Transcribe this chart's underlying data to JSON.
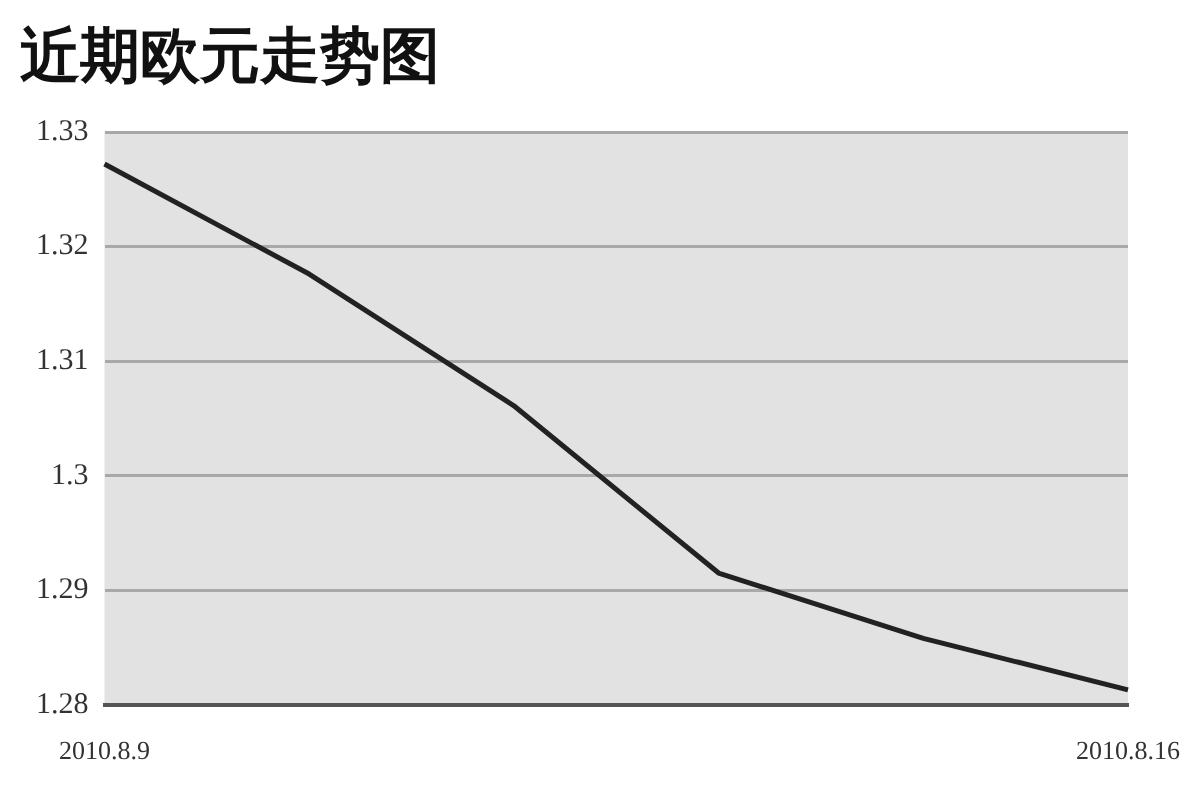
{
  "chart_data": {
    "type": "line",
    "title": "近期欧元走势图",
    "categories": [
      "2010.8.9",
      null,
      null,
      null,
      null,
      "2010.8.16"
    ],
    "series": [
      {
        "color": "#222222",
        "values": [
          1.3272,
          1.3176,
          1.3061,
          1.2915,
          1.2858,
          1.2813
        ]
      }
    ],
    "ylim": [
      1.28,
      1.33
    ],
    "yticks": [
      1.28,
      1.29,
      1.3,
      1.31,
      1.32,
      1.33
    ],
    "grid": "y",
    "legend": false,
    "marker": "none",
    "line_style": "solid"
  }
}
